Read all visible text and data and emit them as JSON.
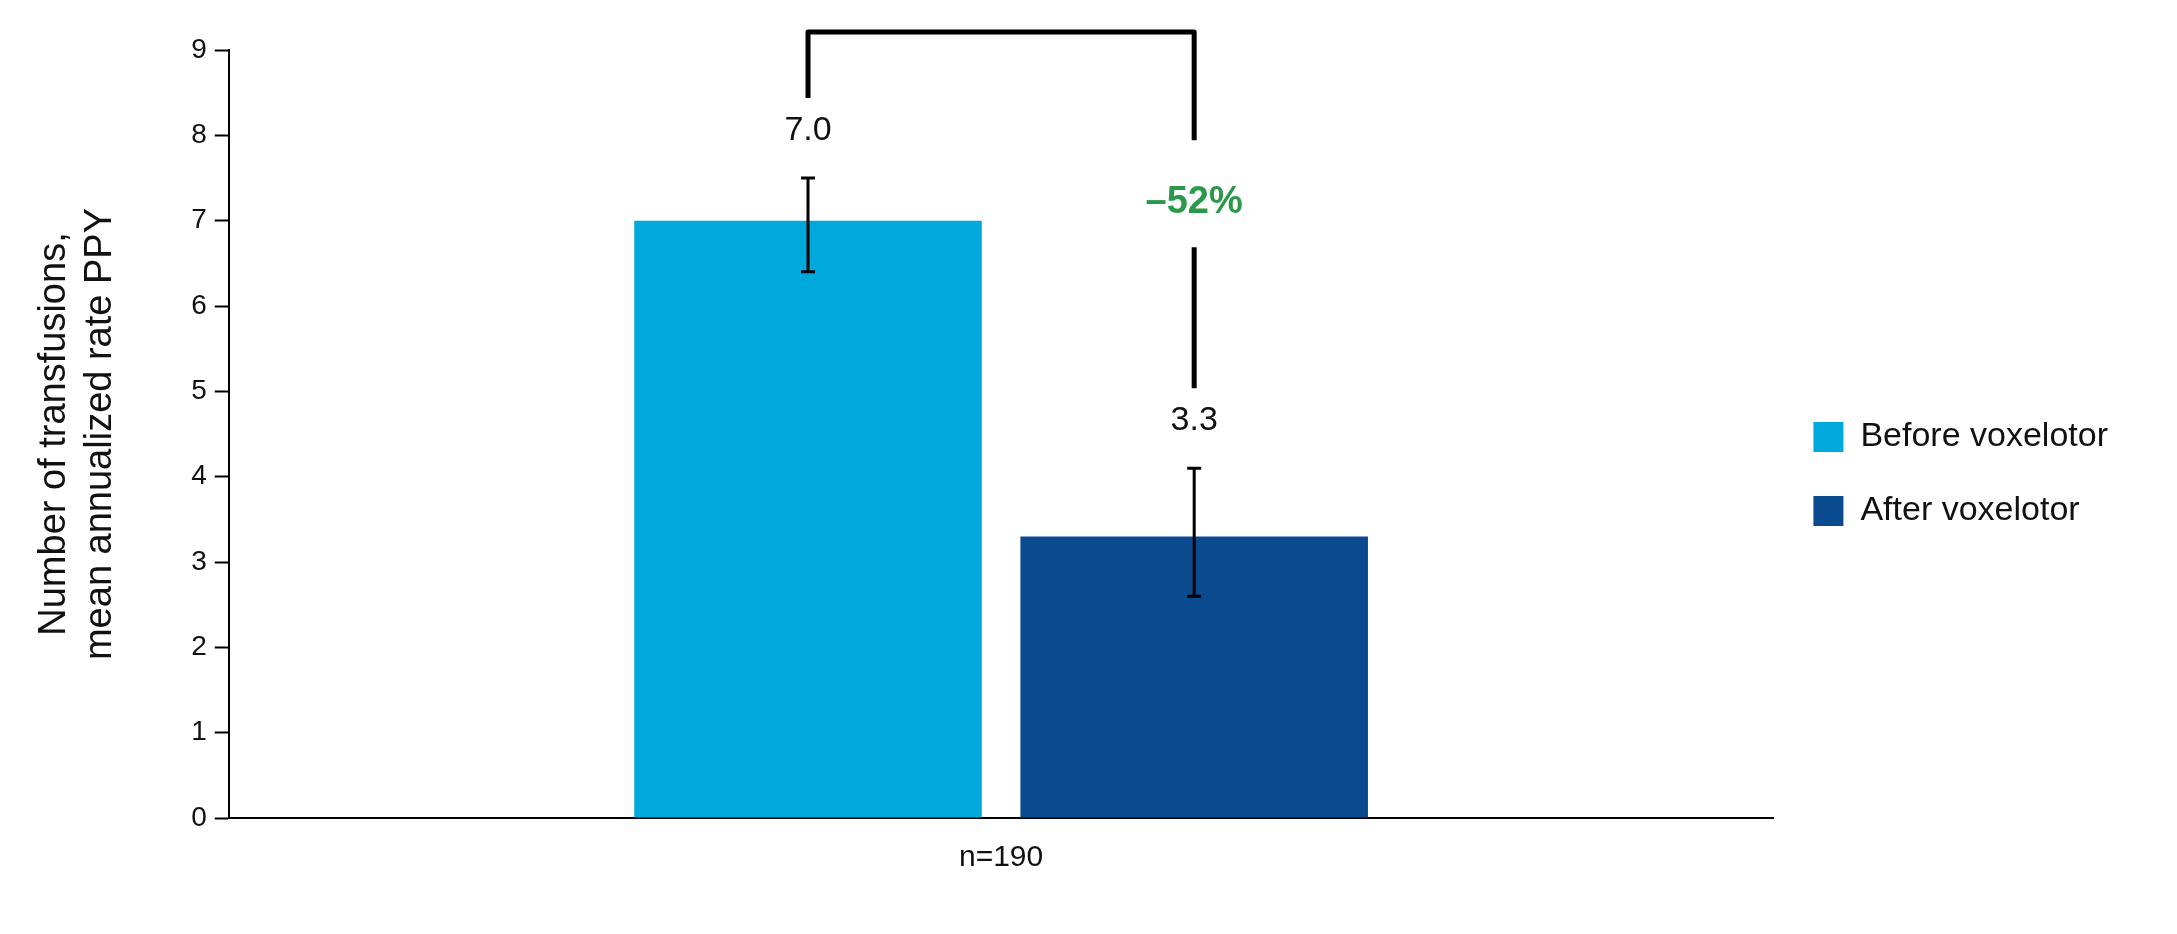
{
  "chart_data": {
    "type": "bar",
    "ylabel": "Number of transfusions, mean annualized rate PPY",
    "categories": [
      "n=190"
    ],
    "series": [
      {
        "name": "Before voxelotor",
        "color": "#00a9db",
        "values": [
          7.0
        ],
        "errors": [
          [
            6.4,
            7.5
          ]
        ],
        "value_labels": [
          "7.0"
        ]
      },
      {
        "name": "After voxelotor",
        "color": "#0a4a8f",
        "values": [
          3.3
        ],
        "errors": [
          [
            2.6,
            4.1
          ]
        ],
        "value_labels": [
          "3.3"
        ]
      }
    ],
    "ylim": [
      0,
      9
    ],
    "yticks": [
      0,
      1,
      2,
      3,
      4,
      5,
      6,
      7,
      8,
      9
    ],
    "grid": false,
    "legend": "right",
    "annotations": [
      "–52%"
    ]
  }
}
